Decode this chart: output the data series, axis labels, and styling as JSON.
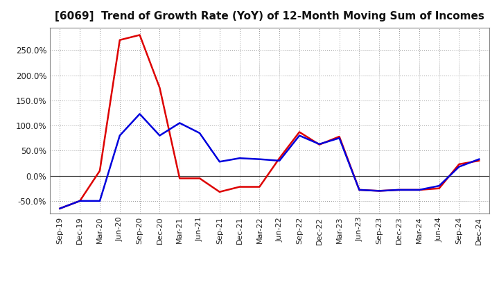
{
  "title": "[6069]  Trend of Growth Rate (YoY) of 12-Month Moving Sum of Incomes",
  "x_labels": [
    "Sep-19",
    "Dec-19",
    "Mar-20",
    "Jun-20",
    "Sep-20",
    "Dec-20",
    "Mar-21",
    "Jun-21",
    "Sep-21",
    "Dec-21",
    "Mar-22",
    "Jun-22",
    "Sep-22",
    "Dec-22",
    "Mar-23",
    "Jun-23",
    "Sep-23",
    "Dec-23",
    "Mar-24",
    "Jun-24",
    "Sep-24",
    "Dec-24"
  ],
  "ordinary_income": [
    -65,
    -50,
    -50,
    80,
    123,
    80,
    105,
    85,
    28,
    35,
    33,
    30,
    80,
    63,
    75,
    -28,
    -30,
    -28,
    -28,
    -20,
    18,
    33
  ],
  "net_income": [
    -65,
    -50,
    10,
    270,
    280,
    175,
    -5,
    -5,
    -32,
    -22,
    -22,
    35,
    87,
    62,
    78,
    -28,
    -30,
    -28,
    -28,
    -25,
    23,
    30
  ],
  "ordinary_color": "#0000dd",
  "net_color": "#dd0000",
  "ylim": [
    -75,
    295
  ],
  "yticks": [
    -50,
    0,
    50,
    100,
    150,
    200,
    250
  ],
  "background_color": "#ffffff",
  "plot_bg_color": "#ffffff",
  "grid_color": "#999999",
  "linewidth": 1.8,
  "title_fontsize": 11,
  "tick_fontsize": 8,
  "ytick_fontsize": 8.5
}
